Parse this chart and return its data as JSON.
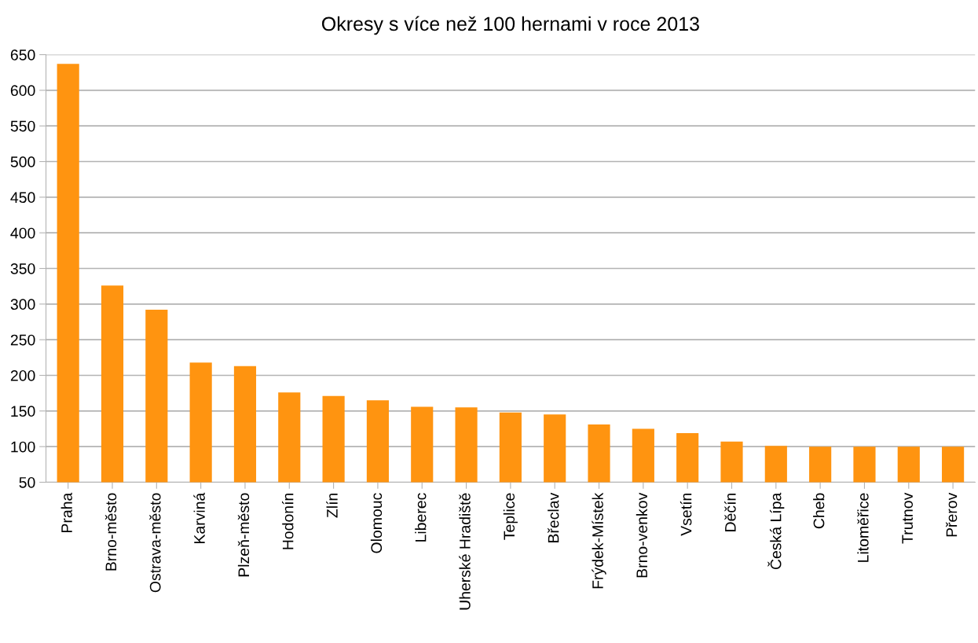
{
  "chart_data": {
    "type": "bar",
    "title": "Okresy s více než 100 hernami v roce 2013",
    "categories": [
      "Praha",
      "Brno-město",
      "Ostrava-město",
      "Karviná",
      "Plzeň-město",
      "Hodonín",
      "Zlín",
      "Olomouc",
      "Liberec",
      "Uherské Hradiště",
      "Teplice",
      "Břeclav",
      "Frýdek-Místek",
      "Brno-venkov",
      "Vsetín",
      "Děčín",
      "Česká Lípa",
      "Cheb",
      "Litoměřice",
      "Trutnov",
      "Přerov"
    ],
    "values": [
      637,
      326,
      292,
      218,
      213,
      176,
      171,
      165,
      156,
      155,
      148,
      145,
      131,
      125,
      119,
      107,
      101,
      100,
      100,
      100,
      100
    ],
    "color": "#ff9410",
    "ylim": [
      50,
      650
    ],
    "yticks": [
      50,
      100,
      150,
      200,
      250,
      300,
      350,
      400,
      450,
      500,
      550,
      600,
      650
    ],
    "grid": "y",
    "legend": false
  }
}
